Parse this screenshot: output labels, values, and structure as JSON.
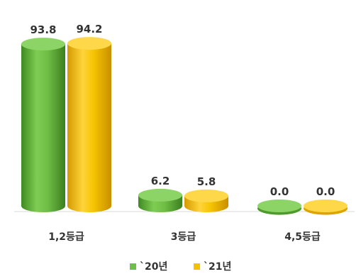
{
  "chart_data": {
    "type": "bar",
    "title": "",
    "xlabel": "",
    "ylabel": "",
    "categories": [
      "1,2등급",
      "3등급",
      "4,5등급"
    ],
    "series": [
      {
        "name": "`20년",
        "values": [
          93.8,
          6.2,
          0.0
        ],
        "labels": [
          "93.8",
          "6.2",
          "0.0"
        ],
        "color": "#6fbe45"
      },
      {
        "name": "`21년",
        "values": [
          94.2,
          5.8,
          0.0
        ],
        "labels": [
          "94.2",
          "5.8",
          "0.0"
        ],
        "color": "#f2c200"
      }
    ],
    "ylim": [
      0,
      100
    ],
    "grid": false,
    "legend_position": "bottom"
  }
}
